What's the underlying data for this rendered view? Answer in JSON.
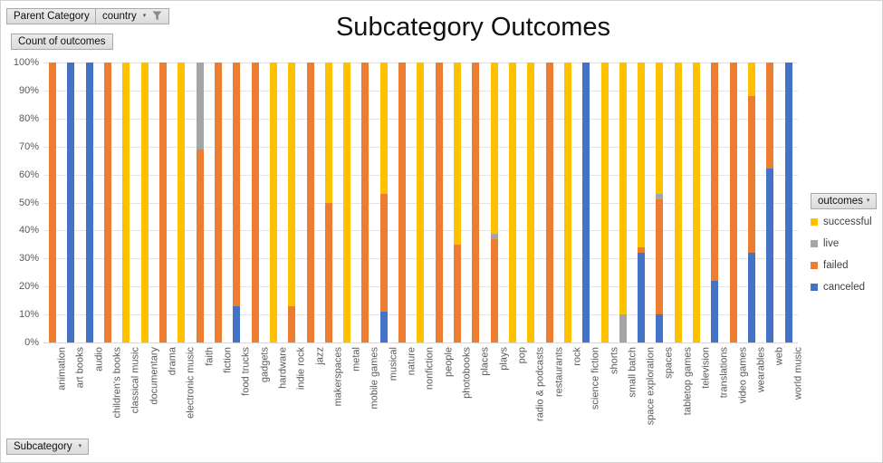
{
  "field_buttons": {
    "parent_category": "Parent Category",
    "country": "country",
    "count_of_outcomes": "Count of outcomes",
    "outcomes": "outcomes",
    "subcategory": "Subcategory"
  },
  "chart_data": {
    "type": "bar",
    "subtype": "100%-stacked-column",
    "title": "Subcategory Outcomes",
    "xlabel": "",
    "ylabel": "",
    "ylim": [
      0,
      100
    ],
    "grid": true,
    "legend_position": "right",
    "y_ticks": [
      "0%",
      "10%",
      "20%",
      "30%",
      "40%",
      "50%",
      "60%",
      "70%",
      "80%",
      "90%",
      "100%"
    ],
    "categories": [
      "animation",
      "art books",
      "audio",
      "children's books",
      "classical music",
      "documentary",
      "drama",
      "electronic music",
      "faith",
      "fiction",
      "food trucks",
      "gadgets",
      "hardware",
      "indie rock",
      "jazz",
      "makerspaces",
      "metal",
      "mobile games",
      "musical",
      "nature",
      "nonfiction",
      "people",
      "photobooks",
      "places",
      "plays",
      "pop",
      "radio & podcasts",
      "restaurants",
      "rock",
      "science fiction",
      "shorts",
      "small batch",
      "space exploration",
      "spaces",
      "tabletop games",
      "television",
      "translations",
      "video games",
      "wearables",
      "web",
      "world music"
    ],
    "series": [
      {
        "name": "successful",
        "color": "#FFC000",
        "values": [
          0,
          0,
          0,
          0,
          100,
          100,
          0,
          100,
          0,
          0,
          0,
          0,
          100,
          87,
          0,
          50,
          100,
          0,
          47,
          0,
          100,
          0,
          65,
          0,
          61,
          100,
          100,
          0,
          100,
          0,
          100,
          90,
          66,
          47,
          100,
          100,
          0,
          0,
          12,
          0,
          0
        ]
      },
      {
        "name": "live",
        "color": "#A5A5A5",
        "values": [
          0,
          0,
          0,
          0,
          0,
          0,
          0,
          0,
          31,
          0,
          0,
          0,
          0,
          0,
          0,
          0,
          0,
          0,
          0,
          0,
          0,
          0,
          0,
          0,
          2,
          0,
          0,
          0,
          0,
          0,
          0,
          10,
          0,
          2,
          0,
          0,
          0,
          0,
          0,
          0,
          0
        ]
      },
      {
        "name": "failed",
        "color": "#ED7D31",
        "values": [
          100,
          0,
          0,
          100,
          0,
          0,
          100,
          0,
          69,
          100,
          87,
          100,
          0,
          13,
          100,
          50,
          0,
          100,
          42,
          100,
          0,
          100,
          35,
          100,
          37,
          0,
          0,
          100,
          0,
          0,
          0,
          0,
          2,
          41,
          0,
          0,
          78,
          100,
          56,
          38,
          0
        ]
      },
      {
        "name": "canceled",
        "color": "#4472C4",
        "values": [
          0,
          100,
          100,
          0,
          0,
          0,
          0,
          0,
          0,
          0,
          13,
          0,
          0,
          0,
          0,
          0,
          0,
          0,
          11,
          0,
          0,
          0,
          0,
          0,
          0,
          0,
          0,
          0,
          0,
          100,
          0,
          0,
          32,
          10,
          0,
          0,
          22,
          0,
          32,
          62,
          100
        ]
      }
    ]
  }
}
